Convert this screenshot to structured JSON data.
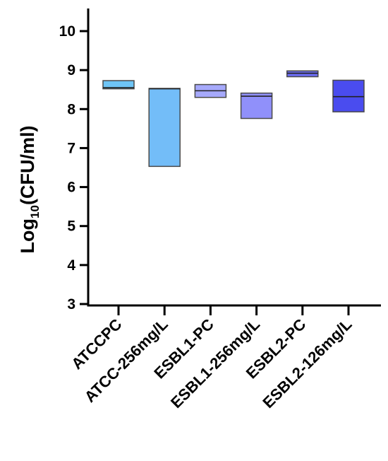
{
  "chart_data": {
    "type": "floating-bar",
    "ylabel": {
      "prefix": "Log",
      "subscript": "10",
      "suffix": "(CFU/ml)"
    },
    "ylim": [
      3,
      10.5
    ],
    "yticks": [
      3,
      4,
      5,
      6,
      7,
      8,
      9,
      10
    ],
    "ytick_labels": [
      "3",
      "4",
      "5",
      "6",
      "7",
      "8",
      "9",
      "10"
    ],
    "categories": [
      "ATCCPC",
      "ATCC-256mg/L",
      "ESBL1-PC",
      "ESBL1-256mg/L",
      "ESBL2-PC",
      "ESBL2-126mg/L"
    ],
    "bars": [
      {
        "category": "ATCCPC",
        "min": 8.52,
        "max": 8.73,
        "median": 8.55,
        "color": "#6ec5f6"
      },
      {
        "category": "ATCC-256mg/L",
        "min": 6.53,
        "max": 8.53,
        "median": 8.52,
        "color": "#73bdf8"
      },
      {
        "category": "ESBL1-PC",
        "min": 8.3,
        "max": 8.63,
        "median": 8.47,
        "color": "#a6a9fb"
      },
      {
        "category": "ESBL1-256mg/L",
        "min": 7.76,
        "max": 8.41,
        "median": 8.33,
        "color": "#9090fa"
      },
      {
        "category": "ESBL2-PC",
        "min": 8.83,
        "max": 8.98,
        "median": 8.92,
        "color": "#6b6cf2"
      },
      {
        "category": "ESBL2-126mg/L",
        "min": 7.93,
        "max": 8.74,
        "median": 8.32,
        "color": "#4a4cef"
      }
    ],
    "grid": false,
    "legend": "none"
  }
}
